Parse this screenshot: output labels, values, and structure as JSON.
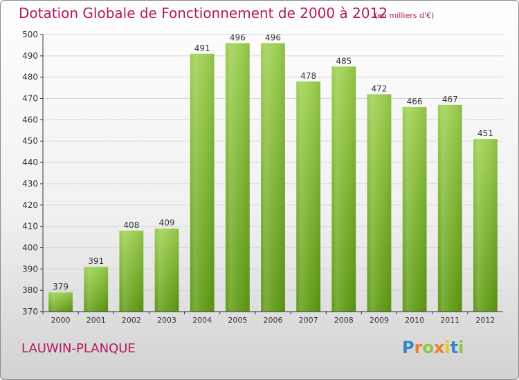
{
  "chart_data": {
    "type": "bar",
    "title": "Dotation Globale de Fonctionnement de 2000 à 2012",
    "subtitle": "(en milliers d'€)",
    "categories": [
      "2000",
      "2001",
      "2002",
      "2003",
      "2004",
      "2005",
      "2006",
      "2007",
      "2008",
      "2009",
      "2010",
      "2011",
      "2012"
    ],
    "values": [
      379,
      391,
      408,
      409,
      491,
      496,
      496,
      478,
      485,
      472,
      466,
      467,
      451
    ],
    "ylim": [
      370,
      500
    ],
    "yticks": [
      370,
      380,
      390,
      400,
      410,
      420,
      430,
      440,
      450,
      460,
      470,
      480,
      490,
      500
    ],
    "grid": true,
    "bar_color": "#7cb82f",
    "xlabel": "",
    "ylabel": ""
  },
  "commune_name": "LAUWIN-PLANQUE",
  "logo": {
    "letters": [
      "P",
      "r",
      "o",
      "x",
      "i",
      "t",
      "i"
    ],
    "colors": [
      "#2f87c8",
      "#e8832a",
      "#8dc63f",
      "#e8832a",
      "#f2c31b",
      "#2f87c8",
      "#8dc63f"
    ]
  },
  "colors": {
    "title": "#b5185c",
    "grid": "#d6d6d6",
    "axis": "#333333"
  }
}
